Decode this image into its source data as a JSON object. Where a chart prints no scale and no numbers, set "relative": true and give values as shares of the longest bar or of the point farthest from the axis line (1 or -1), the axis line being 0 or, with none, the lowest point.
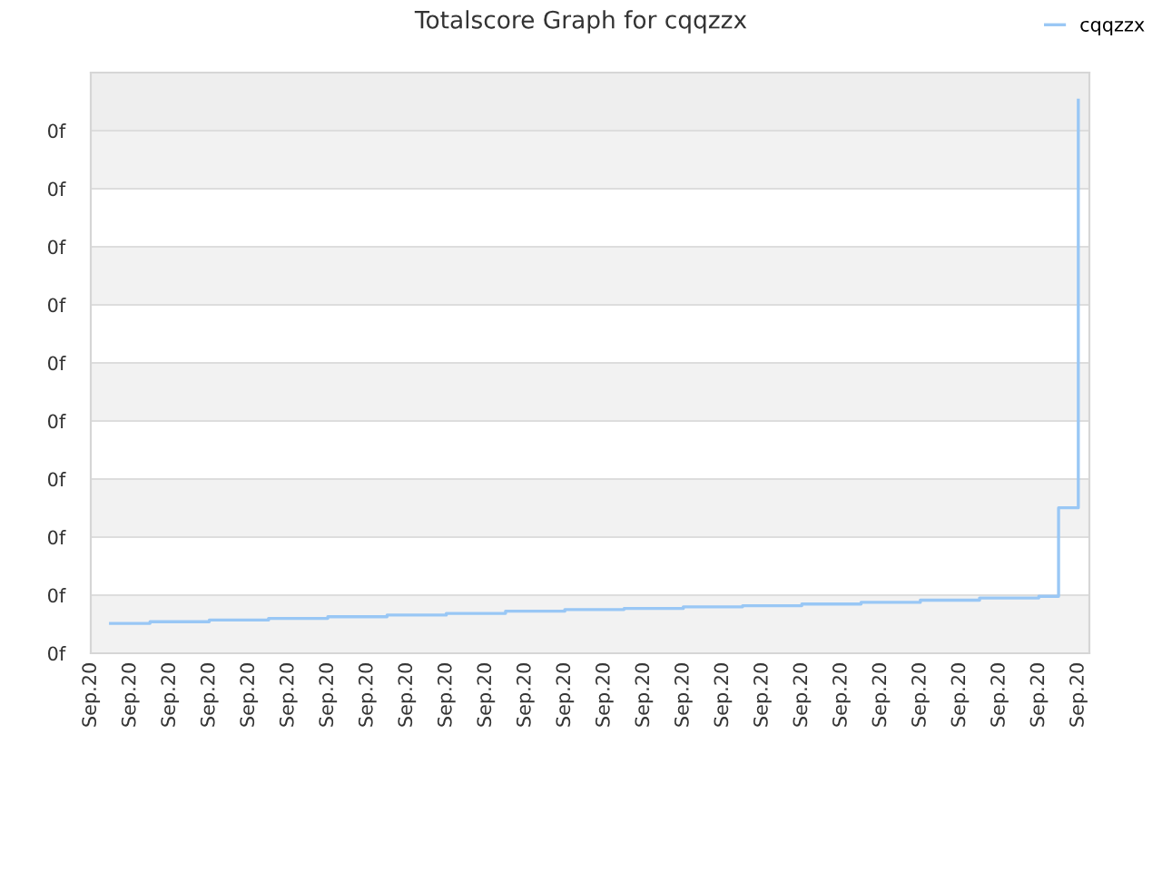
{
  "chart_data": {
    "type": "step",
    "title": "Totalscore Graph for cqqzzx",
    "relative": true,
    "categories": [
      "Sep.20",
      null,
      "Sep.20",
      null,
      "Sep.20",
      null,
      "Sep.20",
      null,
      "Sep.20",
      null,
      "Sep.20",
      null,
      "Sep.20",
      null,
      "Sep.20",
      null,
      "Sep.20",
      null,
      "Sep.20",
      null,
      "Sep.20",
      null,
      "Sep.20",
      null,
      "Sep.20",
      null,
      "Sep.20",
      null,
      "Sep.20",
      null,
      "Sep.20",
      null,
      "Sep.20",
      null,
      "Sep.20",
      null,
      "Sep.20",
      null,
      "Sep.20",
      null,
      "Sep.20",
      null,
      "Sep.20",
      null,
      "Sep.20",
      null,
      "Sep.20",
      null,
      "Sep.20",
      null,
      "Sep.20"
    ],
    "annotations": [
      "0f",
      "0f",
      "0f",
      "0f",
      "0f",
      "0f",
      "0f",
      "0f",
      "0f",
      "0f"
    ],
    "grid": "y",
    "legend": "top right",
    "bands": [
      {
        "axis": "y",
        "from": 0,
        "to": 0.105,
        "color": "#f2f2f2"
      },
      {
        "axis": "y",
        "from": 0.21,
        "to": 0.315,
        "color": "#f2f2f2"
      },
      {
        "axis": "y",
        "from": 0.42,
        "to": 0.525,
        "color": "#f2f2f2"
      },
      {
        "axis": "y",
        "from": 0.63,
        "to": 0.735,
        "color": "#f2f2f2"
      },
      {
        "axis": "y",
        "from": 0.84,
        "to": 0.945,
        "color": "#f2f2f2"
      },
      {
        "axis": "y",
        "from": 0.945,
        "to": 1.05,
        "color": "#eeeeee"
      }
    ],
    "series": [
      {
        "name": "cqqzzx",
        "color": "#99c7f5",
        "values": [
          null,
          0.054,
          0.054,
          0.057,
          0.057,
          0.057,
          0.06,
          0.06,
          0.06,
          0.063,
          0.063,
          0.063,
          0.066,
          0.066,
          0.066,
          0.069,
          0.069,
          0.069,
          0.072,
          0.072,
          0.072,
          0.076,
          0.076,
          0.076,
          0.079,
          0.079,
          0.079,
          0.081,
          0.081,
          0.081,
          0.084,
          0.084,
          0.084,
          0.086,
          0.086,
          0.086,
          0.089,
          0.089,
          0.089,
          0.092,
          0.092,
          0.092,
          0.096,
          0.096,
          0.096,
          0.1,
          0.1,
          0.1,
          0.103,
          0.263,
          1
        ]
      }
    ]
  }
}
